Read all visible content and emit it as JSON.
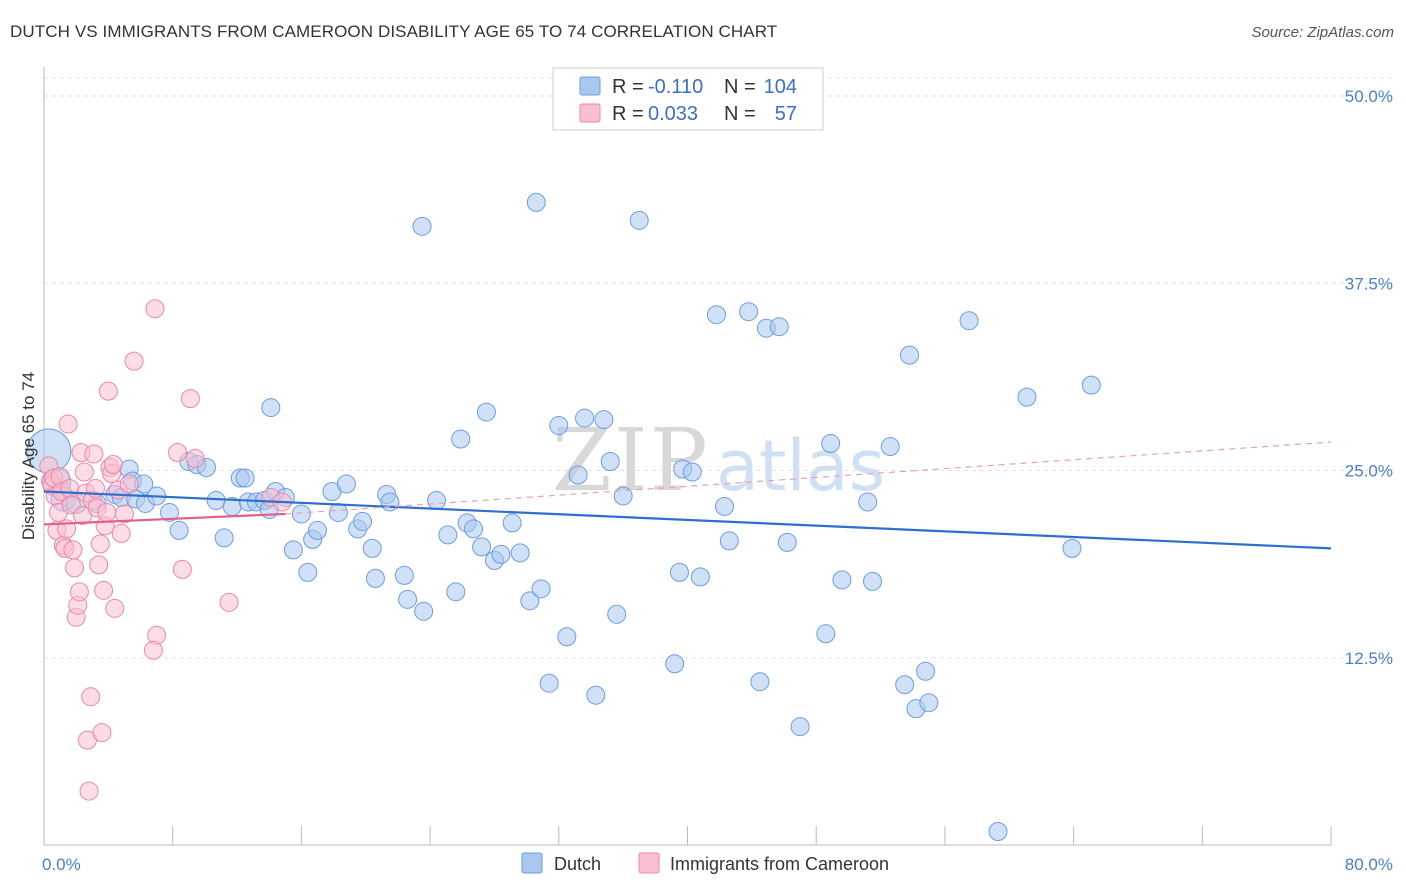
{
  "title": "DUTCH VS IMMIGRANTS FROM CAMEROON DISABILITY AGE 65 TO 74 CORRELATION CHART",
  "source": "Source: ZipAtlas.com",
  "watermark": {
    "zip": "ZIP",
    "atlas": "atlas"
  },
  "legend": {
    "r_label": "R =",
    "n_label": "N =",
    "rows": [
      {
        "series": "Dutch",
        "r": "-0.110",
        "n": "104",
        "color": "#a9c8f0",
        "stroke": "#6d9de0"
      },
      {
        "series": "Immigrants from Cameroon",
        "r": "0.033",
        "n": "57",
        "color": "#f9bfd0",
        "stroke": "#ec88a6"
      }
    ]
  },
  "chart_data": {
    "type": "scatter",
    "xlabel": "",
    "ylabel": "Disability Age 65 to 74",
    "xlim": [
      0,
      80
    ],
    "ylim": [
      0,
      52
    ],
    "x_tick_labels": [
      {
        "value": 0,
        "label": "0.0%"
      },
      {
        "value": 80,
        "label": "80.0%"
      }
    ],
    "y_tick_labels": [
      {
        "value": 12.5,
        "label": "12.5%"
      },
      {
        "value": 25,
        "label": "25.0%"
      },
      {
        "value": 37.5,
        "label": "37.5%"
      },
      {
        "value": 50,
        "label": "50.0%"
      }
    ],
    "series": [
      {
        "name": "Dutch",
        "color": "#a9c8f0",
        "stroke": "#6d9de0",
        "line_color": "#2f6fcc",
        "trend": {
          "x0": 0,
          "y0": 23.6,
          "x1": 80,
          "y1": 19.8
        },
        "points": [
          [
            0.3,
            26.3,
            22
          ],
          [
            0.8,
            24.2,
            14
          ],
          [
            1.2,
            23.1,
            12
          ],
          [
            2.0,
            22.8,
            10
          ],
          [
            3.3,
            22.8,
            9
          ],
          [
            4.4,
            23.4,
            9
          ],
          [
            4.8,
            23.2,
            9
          ],
          [
            5.3,
            25.1,
            9
          ],
          [
            5.5,
            24.3,
            9
          ],
          [
            5.7,
            23.1,
            9
          ],
          [
            6.2,
            24.1,
            9
          ],
          [
            6.3,
            22.8,
            9
          ],
          [
            7.0,
            23.3,
            9
          ],
          [
            7.8,
            22.2,
            9
          ],
          [
            8.4,
            21.0,
            9
          ],
          [
            9.0,
            25.6,
            9
          ],
          [
            9.5,
            25.4,
            9
          ],
          [
            10.1,
            25.2,
            9
          ],
          [
            10.7,
            23.0,
            9
          ],
          [
            11.2,
            20.5,
            9
          ],
          [
            11.7,
            22.6,
            9
          ],
          [
            12.2,
            24.5,
            9
          ],
          [
            12.5,
            24.5,
            9
          ],
          [
            12.7,
            22.9,
            9
          ],
          [
            13.2,
            22.9,
            9
          ],
          [
            13.7,
            23.0,
            9
          ],
          [
            14.0,
            22.4,
            9
          ],
          [
            14.1,
            29.2,
            9
          ],
          [
            14.4,
            23.6,
            9
          ],
          [
            15.0,
            23.2,
            9
          ],
          [
            15.5,
            19.7,
            9
          ],
          [
            16.0,
            22.1,
            9
          ],
          [
            16.4,
            18.2,
            9
          ],
          [
            16.7,
            20.4,
            9
          ],
          [
            17.0,
            21.0,
            9
          ],
          [
            17.9,
            23.6,
            9
          ],
          [
            18.3,
            22.2,
            9
          ],
          [
            18.8,
            24.1,
            9
          ],
          [
            19.5,
            21.1,
            9
          ],
          [
            19.8,
            21.6,
            9
          ],
          [
            20.4,
            19.8,
            9
          ],
          [
            20.6,
            17.8,
            9
          ],
          [
            21.3,
            23.4,
            9
          ],
          [
            21.5,
            22.9,
            9
          ],
          [
            22.4,
            18.0,
            9
          ],
          [
            22.6,
            16.4,
            9
          ],
          [
            23.5,
            41.3,
            9
          ],
          [
            23.6,
            15.6,
            9
          ],
          [
            24.4,
            23.0,
            9
          ],
          [
            25.1,
            20.7,
            9
          ],
          [
            25.6,
            16.9,
            9
          ],
          [
            25.9,
            27.1,
            9
          ],
          [
            26.3,
            21.5,
            9
          ],
          [
            26.7,
            21.1,
            9
          ],
          [
            27.2,
            19.9,
            9
          ],
          [
            27.5,
            28.9,
            9
          ],
          [
            28.0,
            19.0,
            9
          ],
          [
            28.4,
            19.4,
            9
          ],
          [
            29.1,
            21.5,
            9
          ],
          [
            29.6,
            19.5,
            9
          ],
          [
            30.2,
            16.3,
            9
          ],
          [
            30.6,
            42.9,
            9
          ],
          [
            30.9,
            17.1,
            9
          ],
          [
            31.4,
            10.8,
            9
          ],
          [
            32.0,
            28.0,
            9
          ],
          [
            32.5,
            13.9,
            9
          ],
          [
            33.2,
            24.7,
            9
          ],
          [
            33.6,
            28.5,
            9
          ],
          [
            34.3,
            10.0,
            9
          ],
          [
            34.8,
            28.4,
            9
          ],
          [
            35.2,
            25.6,
            9
          ],
          [
            35.6,
            15.4,
            9
          ],
          [
            36.0,
            23.3,
            9
          ],
          [
            37.0,
            41.7,
            9
          ],
          [
            39.2,
            12.1,
            9
          ],
          [
            39.5,
            18.2,
            9
          ],
          [
            39.7,
            25.1,
            9
          ],
          [
            40.3,
            24.9,
            9
          ],
          [
            40.8,
            17.9,
            9
          ],
          [
            41.8,
            35.4,
            9
          ],
          [
            42.3,
            22.6,
            9
          ],
          [
            42.6,
            20.3,
            9
          ],
          [
            43.8,
            35.6,
            9
          ],
          [
            44.5,
            10.9,
            9
          ],
          [
            44.9,
            34.5,
            9
          ],
          [
            45.7,
            34.6,
            9
          ],
          [
            46.2,
            20.2,
            9
          ],
          [
            47.0,
            7.9,
            9
          ],
          [
            48.6,
            14.1,
            9
          ],
          [
            48.9,
            26.8,
            9
          ],
          [
            49.6,
            17.7,
            9
          ],
          [
            51.2,
            22.9,
            9
          ],
          [
            51.5,
            17.6,
            9
          ],
          [
            52.6,
            26.6,
            9
          ],
          [
            53.5,
            10.7,
            9
          ],
          [
            53.8,
            32.7,
            9
          ],
          [
            54.2,
            9.1,
            9
          ],
          [
            54.8,
            11.6,
            9
          ],
          [
            55.0,
            9.5,
            9
          ],
          [
            57.5,
            35.0,
            9
          ],
          [
            59.3,
            0.9,
            9
          ],
          [
            61.1,
            29.9,
            9
          ],
          [
            63.9,
            19.8,
            9
          ],
          [
            65.1,
            30.7,
            9
          ]
        ]
      },
      {
        "name": "Immigrants from Cameroon",
        "color": "#f9bfd0",
        "stroke": "#ec88a6",
        "line_color": "#e0608a",
        "trend": {
          "x0": 0,
          "y0": 21.4,
          "x1": 15,
          "y1": 22.1
        },
        "trend_dashed": {
          "x0": 15,
          "y0": 22.1,
          "x1": 80,
          "y1": 26.9
        },
        "points": [
          [
            0.3,
            25.3,
            9
          ],
          [
            0.4,
            24.3,
            9
          ],
          [
            0.5,
            24.0,
            9
          ],
          [
            0.6,
            24.5,
            9
          ],
          [
            0.7,
            23.3,
            9
          ],
          [
            0.8,
            21.0,
            9
          ],
          [
            0.9,
            22.2,
            9
          ],
          [
            1.0,
            24.6,
            9
          ],
          [
            1.1,
            23.6,
            9
          ],
          [
            1.2,
            20.0,
            9
          ],
          [
            1.3,
            19.8,
            9
          ],
          [
            1.4,
            21.1,
            9
          ],
          [
            1.5,
            28.1,
            9
          ],
          [
            1.6,
            23.8,
            9
          ],
          [
            1.7,
            22.7,
            9
          ],
          [
            1.8,
            19.7,
            9
          ],
          [
            1.9,
            18.5,
            9
          ],
          [
            2.0,
            15.2,
            9
          ],
          [
            2.1,
            16.0,
            9
          ],
          [
            2.2,
            16.9,
            9
          ],
          [
            2.3,
            26.2,
            9
          ],
          [
            2.4,
            22.0,
            9
          ],
          [
            2.5,
            24.9,
            9
          ],
          [
            2.6,
            23.5,
            9
          ],
          [
            2.7,
            7.0,
            9
          ],
          [
            2.8,
            3.6,
            9
          ],
          [
            2.9,
            9.9,
            9
          ],
          [
            3.0,
            23.0,
            9
          ],
          [
            3.1,
            26.1,
            9
          ],
          [
            3.2,
            23.8,
            9
          ],
          [
            3.3,
            22.5,
            9
          ],
          [
            3.4,
            18.7,
            9
          ],
          [
            3.5,
            20.1,
            9
          ],
          [
            3.6,
            7.5,
            9
          ],
          [
            3.7,
            17.0,
            9
          ],
          [
            3.8,
            21.3,
            9
          ],
          [
            3.9,
            22.2,
            9
          ],
          [
            4.0,
            30.3,
            9
          ],
          [
            4.1,
            25.2,
            9
          ],
          [
            4.2,
            24.8,
            9
          ],
          [
            4.3,
            25.4,
            9
          ],
          [
            4.4,
            15.8,
            9
          ],
          [
            4.6,
            23.7,
            9
          ],
          [
            4.8,
            20.8,
            9
          ],
          [
            5.0,
            22.1,
            9
          ],
          [
            5.3,
            24.1,
            9
          ],
          [
            5.6,
            32.3,
            9
          ],
          [
            6.9,
            35.8,
            9
          ],
          [
            7.0,
            14.0,
            9
          ],
          [
            6.8,
            13.0,
            9
          ],
          [
            8.3,
            26.2,
            9
          ],
          [
            8.6,
            18.4,
            9
          ],
          [
            9.1,
            29.8,
            9
          ],
          [
            9.4,
            25.8,
            9
          ],
          [
            11.5,
            16.2,
            9
          ],
          [
            14.1,
            23.2,
            9
          ],
          [
            14.8,
            22.9,
            9
          ]
        ]
      }
    ]
  }
}
